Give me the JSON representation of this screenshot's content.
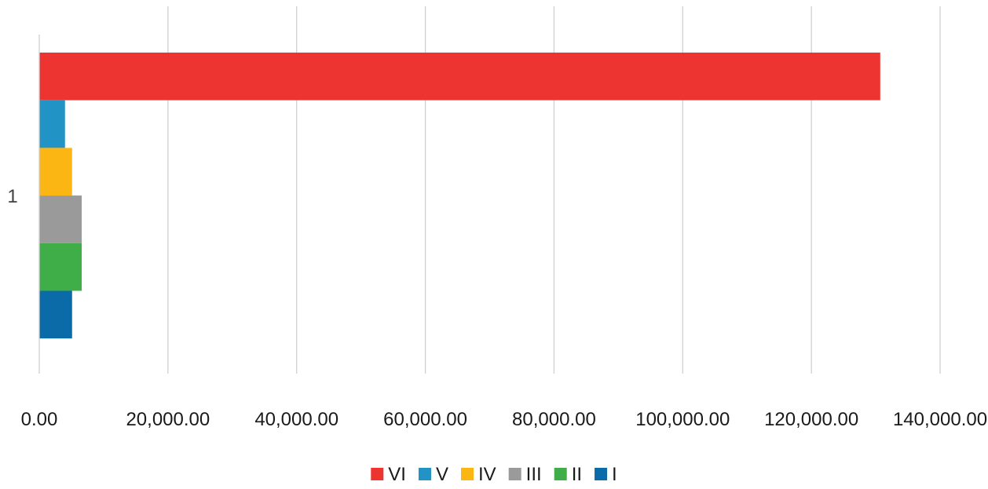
{
  "chart_data": {
    "type": "bar",
    "orientation": "horizontal",
    "categories": [
      "1"
    ],
    "xlim": [
      0,
      140000
    ],
    "x_ticks": [
      0,
      20000,
      40000,
      60000,
      80000,
      100000,
      120000,
      140000
    ],
    "x_tick_labels": [
      "0.00",
      "20,000.00",
      "40,000.00",
      "60,000.00",
      "80,000.00",
      "100,000.00",
      "120,000.00",
      "140,000.00"
    ],
    "grid": true,
    "legend_position": "bottom",
    "title": "",
    "xlabel": "",
    "ylabel": "",
    "series": [
      {
        "name": "VI",
        "values": [
          130700
        ],
        "color": "#ee3431"
      },
      {
        "name": "V",
        "values": [
          4000
        ],
        "color": "#2193c4"
      },
      {
        "name": "IV",
        "values": [
          5100
        ],
        "color": "#fcb614"
      },
      {
        "name": "III",
        "values": [
          6600
        ],
        "color": "#9a9a9a"
      },
      {
        "name": "II",
        "values": [
          6600
        ],
        "color": "#3fae49"
      },
      {
        "name": "I",
        "values": [
          5100
        ],
        "color": "#0b6aa8"
      }
    ]
  }
}
